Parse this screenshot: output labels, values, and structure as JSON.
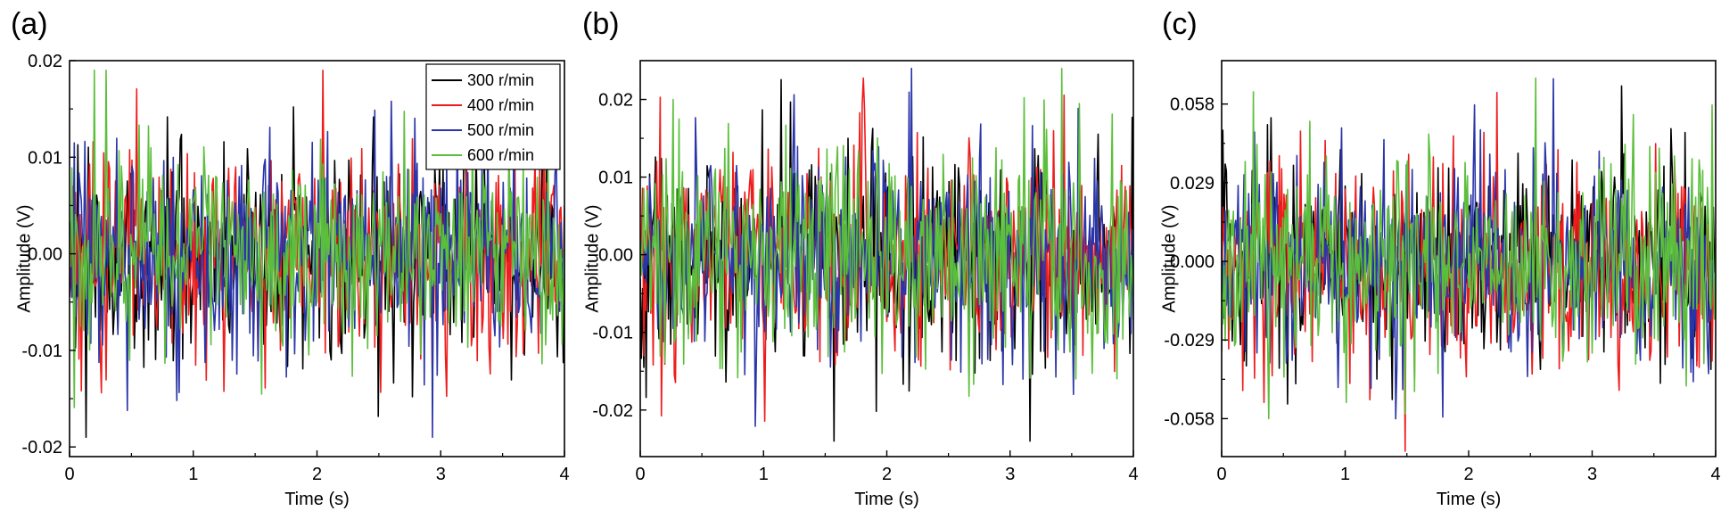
{
  "chart_data": [
    {
      "panel_label": "(a)",
      "type": "line",
      "xlabel": "Time (s)",
      "ylabel": "Amplitude (V)",
      "xlim": [
        0,
        4
      ],
      "ylim": [
        -0.021,
        0.02
      ],
      "xticks": [
        0,
        1,
        2,
        3,
        4
      ],
      "xtick_labels": [
        "0",
        "1",
        "2",
        "3",
        "4"
      ],
      "yticks": [
        -0.02,
        -0.01,
        0.0,
        0.01,
        0.02
      ],
      "ytick_labels": [
        "-0.02",
        "-0.01",
        "0.00",
        "0.01",
        "0.02"
      ],
      "legend": "top-right",
      "noise": {
        "points": 420,
        "std": 0.0052,
        "clip": 0.019
      },
      "series": [
        {
          "name": "300 r/min",
          "color": "#000000"
        },
        {
          "name": "400 r/min",
          "color": "#ee1c1c"
        },
        {
          "name": "500 r/min",
          "color": "#2a35a8"
        },
        {
          "name": "600 r/min",
          "color": "#5cbf3c"
        }
      ]
    },
    {
      "panel_label": "(b)",
      "type": "line",
      "xlabel": "Time (s)",
      "ylabel": "Amplitude (V)",
      "xlim": [
        0,
        4
      ],
      "ylim": [
        -0.026,
        0.025
      ],
      "xticks": [
        0,
        1,
        2,
        3,
        4
      ],
      "xtick_labels": [
        "0",
        "1",
        "2",
        "3",
        "4"
      ],
      "yticks": [
        -0.02,
        -0.01,
        0.0,
        0.01,
        0.02
      ],
      "ytick_labels": [
        "-0.02",
        "-0.01",
        "0.00",
        "0.01",
        "0.02"
      ],
      "legend": "none",
      "noise": {
        "points": 420,
        "std": 0.0068,
        "clip": 0.024
      },
      "series": [
        {
          "name": "300 r/min",
          "color": "#000000"
        },
        {
          "name": "400 r/min",
          "color": "#ee1c1c"
        },
        {
          "name": "500 r/min",
          "color": "#2a35a8"
        },
        {
          "name": "600 r/min",
          "color": "#5cbf3c"
        }
      ]
    },
    {
      "panel_label": "(c)",
      "type": "line",
      "xlabel": "Time (s)",
      "ylabel": "Amplitude (V)",
      "xlim": [
        0,
        4
      ],
      "ylim": [
        -0.072,
        0.074
      ],
      "xticks": [
        0,
        1,
        2,
        3,
        4
      ],
      "xtick_labels": [
        "0",
        "1",
        "2",
        "3",
        "4"
      ],
      "yticks": [
        -0.058,
        -0.029,
        0.0,
        0.029,
        0.058
      ],
      "ytick_labels": [
        "-0.058",
        "-0.029",
        "0.000",
        "0.029",
        "0.058"
      ],
      "legend": "none",
      "noise": {
        "points": 420,
        "std": 0.019,
        "clip": 0.07
      },
      "series": [
        {
          "name": "300 r/min",
          "color": "#000000"
        },
        {
          "name": "400 r/min",
          "color": "#ee1c1c"
        },
        {
          "name": "500 r/min",
          "color": "#2a35a8"
        },
        {
          "name": "600 r/min",
          "color": "#5cbf3c"
        }
      ]
    }
  ]
}
